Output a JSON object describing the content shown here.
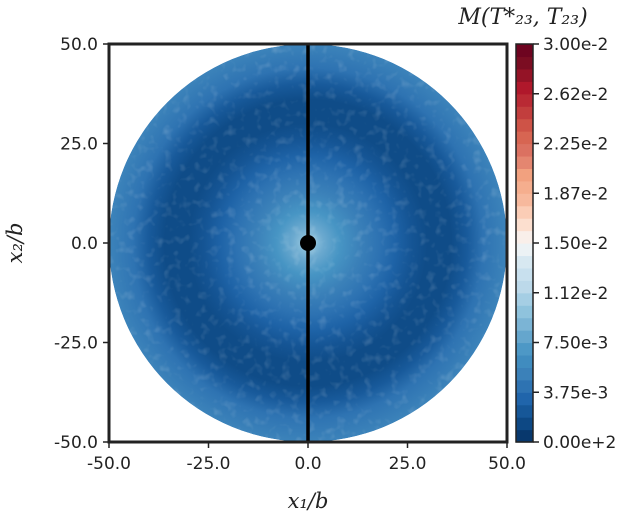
{
  "chart_data": {
    "type": "heatmap",
    "title": "",
    "xlabel": "x₁/b",
    "ylabel": "x₂/b",
    "xlim": [
      -50.0,
      50.0
    ],
    "ylim": [
      -50.0,
      50.0
    ],
    "x_ticks": [
      "-50.0",
      "-25.0",
      "0.0",
      "25.0",
      "50.0"
    ],
    "y_ticks": [
      "50.0",
      "25.0",
      "0.0",
      "-25.0",
      "-50.0"
    ],
    "x_tick_values": [
      -50,
      -25,
      0,
      25,
      50
    ],
    "y_tick_values": [
      50,
      25,
      0,
      -25,
      -50
    ],
    "domain": {
      "shape": "disk",
      "center": [
        0,
        0
      ],
      "radius": 50
    },
    "grid": false,
    "colorbar": {
      "label": "M(T*₂₃, T₂₃)",
      "colormap": "RdBu_r",
      "min": 0.0,
      "max": 0.03,
      "levels": 32,
      "ticks": [
        "3.00e-2",
        "2.62e-2",
        "2.25e-2",
        "1.87e-2",
        "1.50e-2",
        "1.12e-2",
        "7.50e-3",
        "3.75e-3",
        "0.00e+2"
      ],
      "tick_values": [
        0.03,
        0.02625,
        0.0225,
        0.01875,
        0.015,
        0.01125,
        0.0075,
        0.00375,
        0.0
      ],
      "colors": [
        "#053061",
        "#0f4d8a",
        "#2166ac",
        "#3a7fb8",
        "#4393c3",
        "#6fabd0",
        "#92c5de",
        "#bbd9ea",
        "#d1e5f0",
        "#f7f7f7",
        "#fddbc7",
        "#f7b89c",
        "#f4a582",
        "#dc7666",
        "#d6604d",
        "#c03a3b",
        "#b2182b",
        "#7f0f23",
        "#67001f"
      ]
    },
    "radial_profile": {
      "r": [
        0,
        1.5,
        4,
        8,
        13,
        18,
        22,
        26,
        30,
        36,
        40,
        44,
        50
      ],
      "value": [
        0.0113,
        0.0097,
        0.0082,
        0.0068,
        0.0052,
        0.0041,
        0.0031,
        0.0022,
        0.0016,
        0.0016,
        0.0025,
        0.0042,
        0.0053
      ]
    },
    "annotations": {
      "marker": {
        "x": 0,
        "y": 0,
        "shape": "circle",
        "color": "#000000"
      },
      "line": {
        "x": 0,
        "y_from": -50,
        "y_to": 50,
        "color": "#000000"
      }
    }
  }
}
